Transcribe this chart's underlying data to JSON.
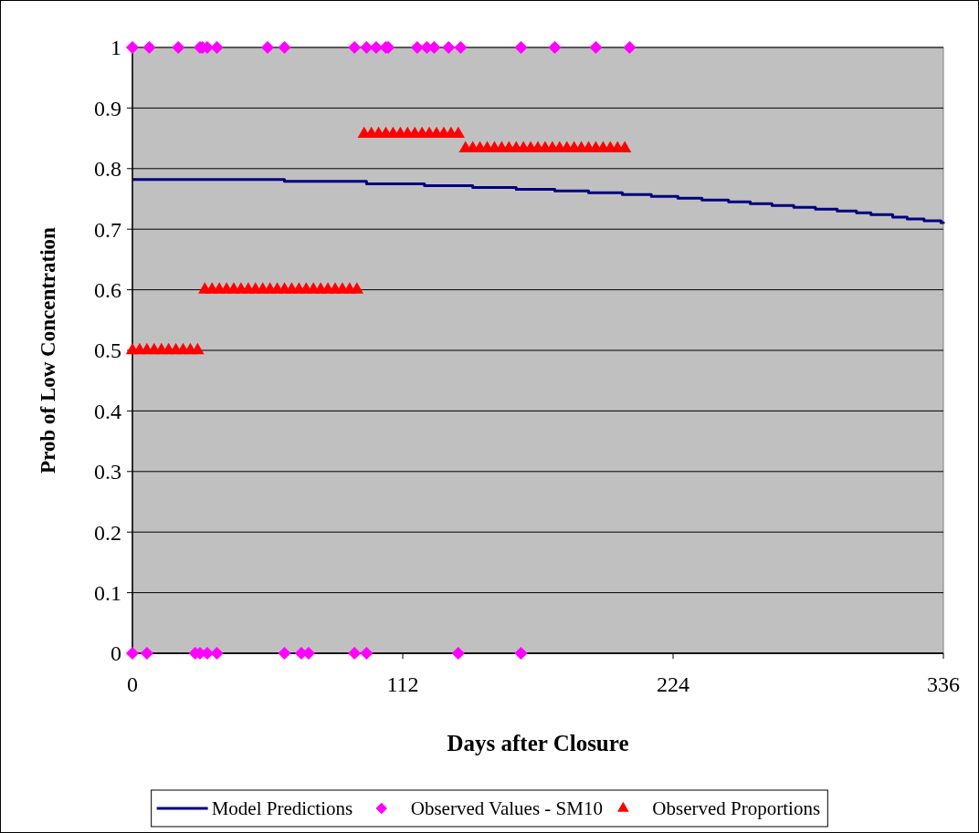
{
  "chart_data": {
    "type": "scatter",
    "xlabel": "Days after Closure",
    "ylabel": "Prob of Low Concentration",
    "xlim": [
      0,
      336
    ],
    "xticks": [
      0,
      112,
      224,
      336
    ],
    "ylim": [
      0,
      1
    ],
    "yticks": [
      0,
      0.1,
      0.2,
      0.3,
      0.4,
      0.5,
      0.6,
      0.7,
      0.8,
      0.9,
      1
    ],
    "grid": "y",
    "legend": "bottom",
    "series": [
      {
        "name": "Model Predictions",
        "type": "step",
        "color": "#000080",
        "marker": "none",
        "x": [
          0,
          63,
          97,
          121,
          141,
          159,
          175,
          189,
          203,
          215,
          226,
          236,
          247,
          256,
          265,
          274,
          283,
          292,
          300,
          306,
          315,
          321,
          328,
          335,
          336
        ],
        "values": [
          0.782,
          0.779,
          0.775,
          0.772,
          0.769,
          0.766,
          0.763,
          0.76,
          0.757,
          0.754,
          0.751,
          0.748,
          0.745,
          0.742,
          0.739,
          0.736,
          0.733,
          0.73,
          0.727,
          0.724,
          0.72,
          0.717,
          0.714,
          0.711,
          0.709
        ]
      },
      {
        "name": "Observed Values - SM10",
        "color": "#ff00ff",
        "marker": "diamond",
        "x": [
          0,
          7,
          19,
          28,
          29,
          31,
          35,
          56,
          63,
          92,
          97,
          101,
          105,
          106,
          118,
          122,
          125,
          131,
          136,
          161,
          175,
          192,
          206,
          0,
          6,
          26,
          28,
          31,
          35,
          63,
          70,
          73,
          92,
          97,
          135,
          161
        ],
        "values": [
          1,
          1,
          1,
          1,
          1,
          1,
          1,
          1,
          1,
          1,
          1,
          1,
          1,
          1,
          1,
          1,
          1,
          1,
          1,
          1,
          1,
          1,
          1,
          0,
          0,
          0,
          0,
          0,
          0,
          0,
          0,
          0,
          0,
          0,
          0,
          0
        ]
      },
      {
        "name": "Observed Proportions",
        "color": "#ff0000",
        "marker": "triangle",
        "x": [
          0,
          3,
          6,
          9,
          12,
          15,
          18,
          21,
          24,
          27,
          30,
          33,
          36,
          39,
          42,
          45,
          48,
          51,
          54,
          57,
          60,
          63,
          66,
          69,
          72,
          75,
          78,
          81,
          84,
          87,
          90,
          93,
          96,
          99,
          102,
          105,
          108,
          111,
          114,
          117,
          120,
          123,
          126,
          129,
          132,
          135,
          138,
          141,
          144,
          147,
          150,
          153,
          156,
          159,
          162,
          165,
          168,
          171,
          174,
          177,
          180,
          183,
          186,
          189,
          192,
          195,
          198,
          201,
          204
        ],
        "values": [
          0.5,
          0.5,
          0.5,
          0.5,
          0.5,
          0.5,
          0.5,
          0.5,
          0.5,
          0.5,
          0.6,
          0.6,
          0.6,
          0.6,
          0.6,
          0.6,
          0.6,
          0.6,
          0.6,
          0.6,
          0.6,
          0.6,
          0.6,
          0.6,
          0.6,
          0.6,
          0.6,
          0.6,
          0.6,
          0.6,
          0.6,
          0.6,
          0.857,
          0.857,
          0.857,
          0.857,
          0.857,
          0.857,
          0.857,
          0.857,
          0.857,
          0.857,
          0.857,
          0.857,
          0.857,
          0.857,
          0.833,
          0.833,
          0.833,
          0.833,
          0.833,
          0.833,
          0.833,
          0.833,
          0.833,
          0.833,
          0.833,
          0.833,
          0.833,
          0.833,
          0.833,
          0.833,
          0.833,
          0.833,
          0.833,
          0.833,
          0.833,
          0.833,
          0.833
        ]
      }
    ]
  }
}
